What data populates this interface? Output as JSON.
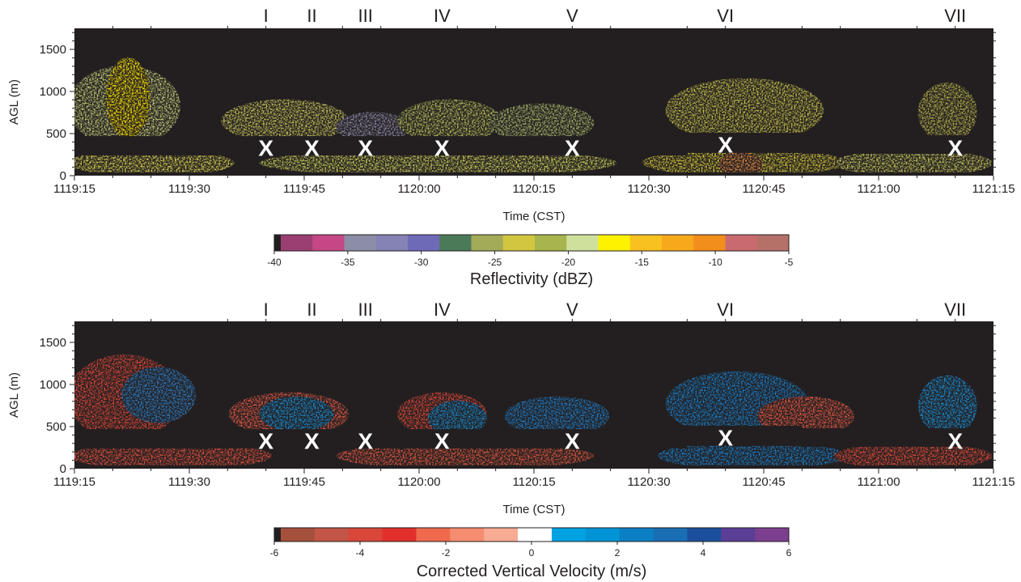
{
  "chart_data": [
    {
      "type": "heatmap",
      "ylabel": "AGL (m)",
      "xlabel": "Time (CST)",
      "ylim": [
        0,
        1750
      ],
      "yticks": [
        0,
        500,
        1000,
        1500
      ],
      "xticks": [
        "1119:15",
        "1119:30",
        "1119:45",
        "1120:00",
        "1120:15",
        "1120:30",
        "1120:45",
        "1121:00",
        "1121:15"
      ],
      "event_markers": [
        {
          "label": "I",
          "time": "1119:40",
          "height": 330
        },
        {
          "label": "II",
          "time": "1119:46",
          "height": 330
        },
        {
          "label": "III",
          "time": "1119:53",
          "height": 330
        },
        {
          "label": "IV",
          "time": "1120:03",
          "height": 330
        },
        {
          "label": "V",
          "time": "1120:20",
          "height": 330
        },
        {
          "label": "VI",
          "time": "1120:40",
          "height": 370
        },
        {
          "label": "VII",
          "time": "1121:10",
          "height": 330
        }
      ],
      "marker_symbol": "X",
      "colorbar": {
        "title": "Reflectivity (dBZ)",
        "ticks": [
          "-40",
          "-35",
          "-30",
          "-25",
          "-20",
          "-15",
          "-10",
          "-5"
        ],
        "range": [
          -40,
          -5
        ],
        "colors": [
          "#9b3f73",
          "#c54785",
          "#8c8ea7",
          "#8582b5",
          "#6f6ab8",
          "#4a7a58",
          "#a3ab57",
          "#d2c641",
          "#a8b54c",
          "#cfe09c",
          "#fff200",
          "#f9c11f",
          "#f7a81b",
          "#f28e1c",
          "#c96a6f",
          "#b57068"
        ]
      }
    },
    {
      "type": "heatmap",
      "ylabel": "AGL (m)",
      "xlabel": "Time (CST)",
      "ylim": [
        0,
        1750
      ],
      "yticks": [
        0,
        500,
        1000,
        1500
      ],
      "xticks": [
        "1119:15",
        "1119:30",
        "1119:45",
        "1120:00",
        "1120:15",
        "1120:30",
        "1120:45",
        "1121:00",
        "1121:15"
      ],
      "event_markers": [
        {
          "label": "I",
          "time": "1119:40",
          "height": 330
        },
        {
          "label": "II",
          "time": "1119:46",
          "height": 330
        },
        {
          "label": "III",
          "time": "1119:53",
          "height": 330
        },
        {
          "label": "IV",
          "time": "1120:03",
          "height": 330
        },
        {
          "label": "V",
          "time": "1120:20",
          "height": 330
        },
        {
          "label": "VI",
          "time": "1120:40",
          "height": 370
        },
        {
          "label": "VII",
          "time": "1121:10",
          "height": 330
        }
      ],
      "marker_symbol": "X",
      "colorbar": {
        "title": "Corrected Vertical Velocity (m/s)",
        "ticks": [
          "-6",
          "-4",
          "-2",
          "0",
          "2",
          "4",
          "6"
        ],
        "range": [
          -6,
          6
        ],
        "colors": [
          "#a5503c",
          "#c25545",
          "#d9463a",
          "#e1302c",
          "#ef6a4c",
          "#f58d70",
          "#f7ab93",
          "#ffffff",
          "#00a2e2",
          "#0094d6",
          "#0a7fc4",
          "#1a6eb4",
          "#1a4f9c",
          "#5b3e96",
          "#7c3f8f"
        ]
      }
    }
  ]
}
